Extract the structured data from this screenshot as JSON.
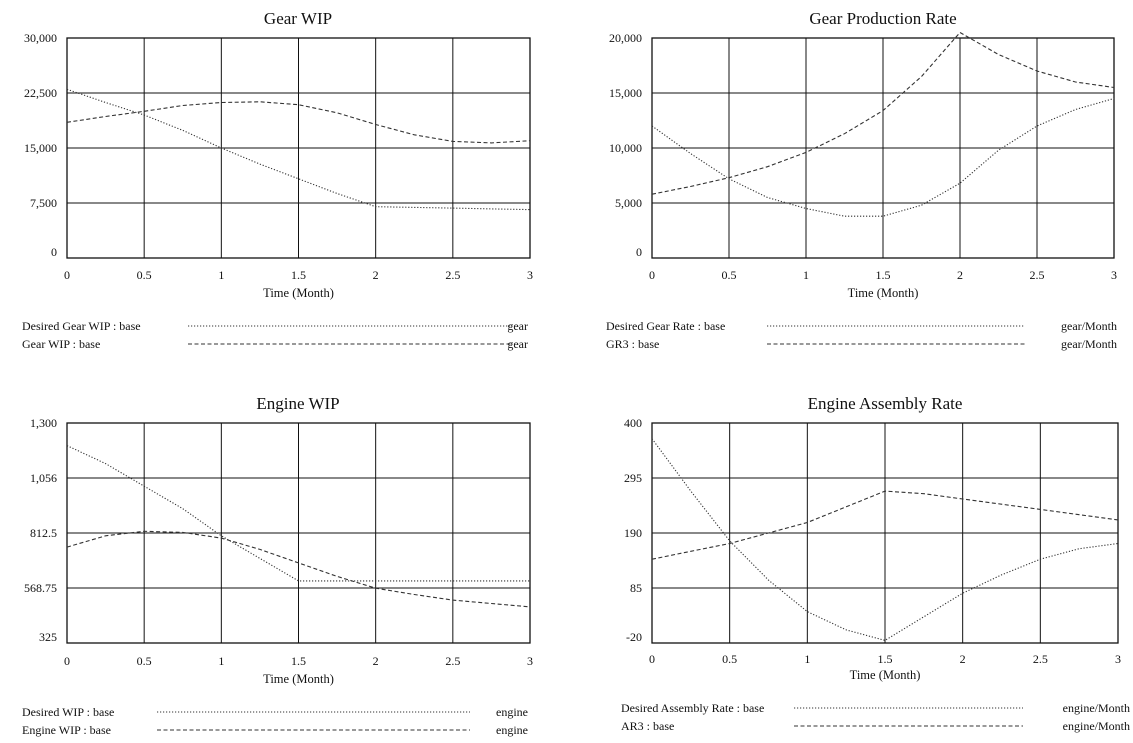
{
  "chart_data": [
    {
      "type": "line",
      "title": "Gear WIP",
      "xlabel": "Time (Month)",
      "ylabel": "",
      "xlim": [
        0,
        3
      ],
      "ylim": [
        0,
        30000
      ],
      "x_ticks": [
        "0",
        "0.5",
        "1",
        "1.5",
        "2",
        "2.5",
        "3"
      ],
      "y_ticks": [
        "0",
        "7,500",
        "15,000",
        "22,500",
        "30,000"
      ],
      "grid": true,
      "legend_position": "below",
      "series": [
        {
          "name": "Desired Gear WIP : base",
          "unit": "gear",
          "x": [
            0,
            0.25,
            0.5,
            0.75,
            1,
            1.25,
            1.5,
            1.75,
            2,
            2.25,
            2.5,
            2.75,
            3
          ],
          "values": [
            23000,
            21200,
            19500,
            17400,
            15000,
            12800,
            10800,
            8800,
            7000,
            6900,
            6800,
            6700,
            6600
          ]
        },
        {
          "name": "Gear WIP : base",
          "unit": "gear",
          "x": [
            0,
            0.25,
            0.5,
            0.75,
            1,
            1.25,
            1.5,
            1.75,
            2,
            2.25,
            2.5,
            2.75,
            3
          ],
          "values": [
            18500,
            19300,
            20000,
            20800,
            21200,
            21300,
            20900,
            19800,
            18200,
            16800,
            15900,
            15700,
            16000
          ]
        }
      ]
    },
    {
      "type": "line",
      "title": "Gear Production Rate",
      "xlabel": "Time (Month)",
      "ylabel": "",
      "xlim": [
        0,
        3
      ],
      "ylim": [
        0,
        20000
      ],
      "x_ticks": [
        "0",
        "0.5",
        "1",
        "1.5",
        "2",
        "2.5",
        "3"
      ],
      "y_ticks": [
        "0",
        "5,000",
        "10,000",
        "15,000",
        "20,000"
      ],
      "grid": true,
      "legend_position": "below",
      "series": [
        {
          "name": "Desired Gear Rate : base",
          "unit": "gear/Month",
          "x": [
            0,
            0.25,
            0.5,
            0.75,
            1,
            1.25,
            1.5,
            1.75,
            2,
            2.25,
            2.5,
            2.75,
            3
          ],
          "values": [
            12000,
            9500,
            7200,
            5500,
            4500,
            3800,
            3800,
            4800,
            6800,
            9800,
            12000,
            13500,
            14500
          ]
        },
        {
          "name": "GR3 : base",
          "unit": "gear/Month",
          "x": [
            0,
            0.25,
            0.5,
            0.75,
            1,
            1.25,
            1.5,
            1.75,
            2,
            2.25,
            2.5,
            2.75,
            3
          ],
          "values": [
            5800,
            6500,
            7300,
            8300,
            9600,
            11300,
            13400,
            16500,
            20500,
            18500,
            17000,
            16000,
            15500
          ]
        }
      ]
    },
    {
      "type": "line",
      "title": "Engine WIP",
      "xlabel": "Time (Month)",
      "ylabel": "",
      "xlim": [
        0,
        3
      ],
      "ylim": [
        325,
        1300
      ],
      "x_ticks": [
        "0",
        "0.5",
        "1",
        "1.5",
        "2",
        "2.5",
        "3"
      ],
      "y_ticks": [
        "325",
        "568.75",
        "812.5",
        "1,056",
        "1,300"
      ],
      "grid": true,
      "legend_position": "below",
      "series": [
        {
          "name": "Desired WIP : base",
          "unit": "engine",
          "x": [
            0,
            0.25,
            0.5,
            0.75,
            1,
            1.25,
            1.5,
            1.75,
            2,
            2.25,
            2.5,
            2.75,
            3
          ],
          "values": [
            1200,
            1120,
            1020,
            920,
            800,
            700,
            600,
            600,
            600,
            600,
            600,
            600,
            600
          ]
        },
        {
          "name": "Engine WIP : base",
          "unit": "engine",
          "x": [
            0,
            0.25,
            0.5,
            0.75,
            1,
            1.25,
            1.5,
            1.75,
            2,
            2.25,
            2.5,
            2.75,
            3
          ],
          "values": [
            750,
            800,
            820,
            815,
            790,
            740,
            680,
            620,
            568,
            540,
            515,
            500,
            485
          ]
        }
      ]
    },
    {
      "type": "line",
      "title": "Engine Assembly Rate",
      "xlabel": "Time (Month)",
      "ylabel": "",
      "xlim": [
        0,
        3
      ],
      "ylim": [
        -20,
        400
      ],
      "x_ticks": [
        "0",
        "0.5",
        "1",
        "1.5",
        "2",
        "2.5",
        "3"
      ],
      "y_ticks": [
        "-20",
        "85",
        "190",
        "295",
        "400"
      ],
      "grid": true,
      "legend_position": "below",
      "series": [
        {
          "name": "Desired Assembly Rate : base",
          "unit": "engine/Month",
          "x": [
            0,
            0.25,
            0.5,
            0.75,
            1,
            1.25,
            1.5,
            1.75,
            2,
            2.25,
            2.5,
            2.75,
            3
          ],
          "values": [
            370,
            270,
            175,
            100,
            40,
            5,
            -15,
            30,
            75,
            110,
            140,
            160,
            170
          ]
        },
        {
          "name": "AR3 : base",
          "unit": "engine/Month",
          "x": [
            0,
            0.25,
            0.5,
            0.75,
            1,
            1.25,
            1.5,
            1.75,
            2,
            2.25,
            2.5,
            2.75,
            3
          ],
          "values": [
            140,
            155,
            170,
            190,
            210,
            240,
            270,
            265,
            255,
            245,
            235,
            225,
            215
          ]
        }
      ]
    }
  ]
}
